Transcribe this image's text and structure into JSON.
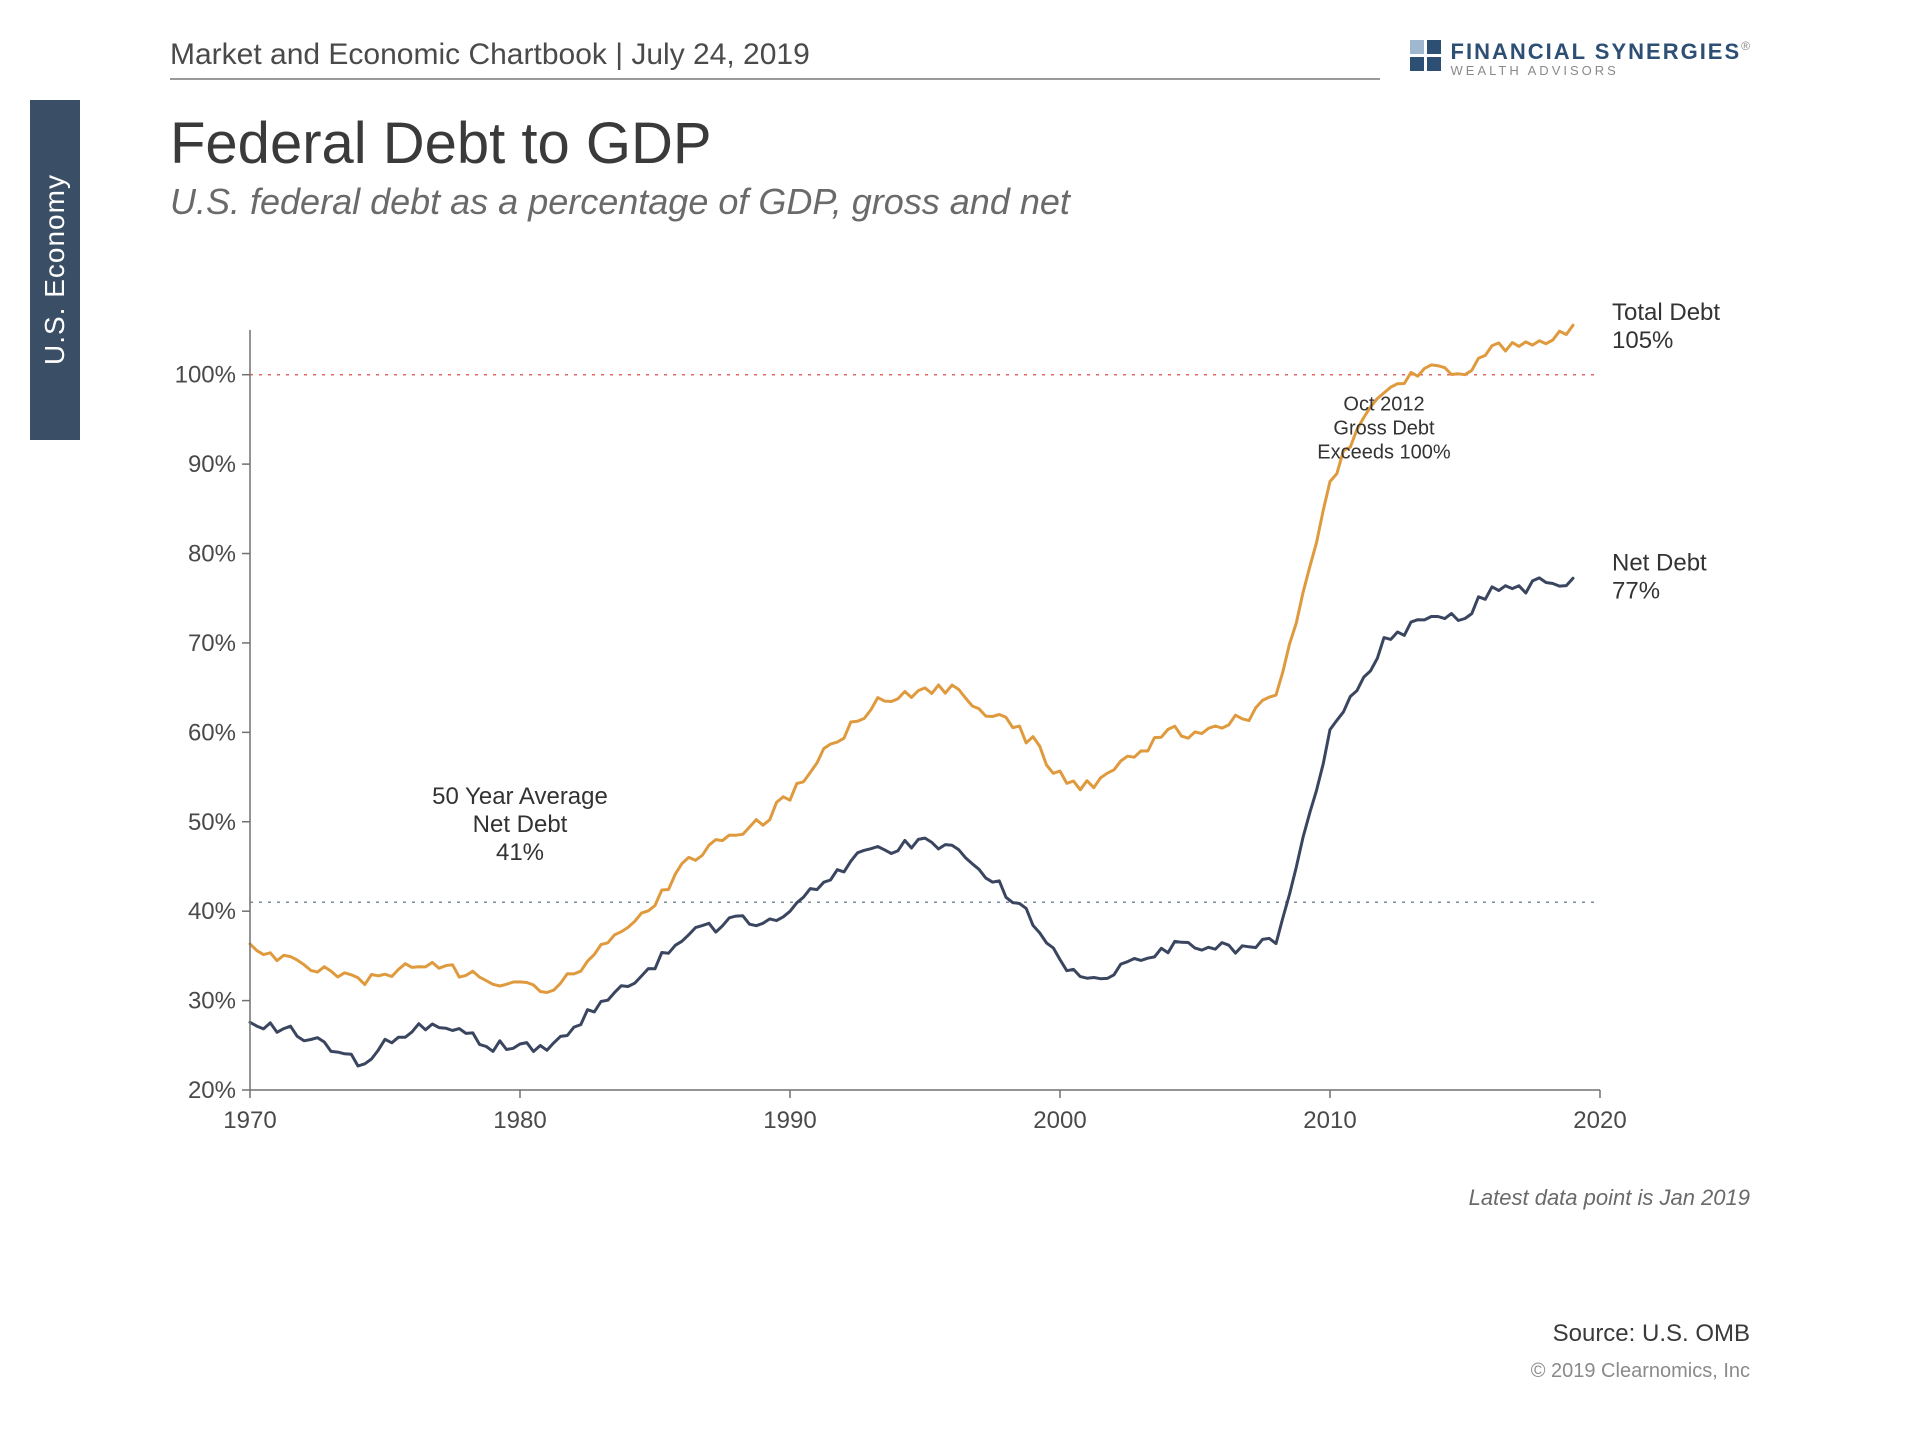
{
  "header": {
    "line": "Market and Economic Chartbook | July 24, 2019",
    "brand_line1": "FINANCIAL SYNERGIES",
    "brand_line2": "WEALTH ADVISORS"
  },
  "side_tab": "U.S. Economy",
  "title": "Federal Debt to GDP",
  "subtitle": "U.S. federal debt as a percentage of GDP, gross and net",
  "chart": {
    "type": "line",
    "x_start": 1970,
    "x_end": 2020,
    "x_ticks": [
      1970,
      1980,
      1990,
      2000,
      2010,
      2020
    ],
    "y_min": 20,
    "y_max": 105,
    "y_ticks": [
      20,
      30,
      40,
      50,
      60,
      70,
      80,
      90,
      100
    ],
    "y_tick_suffix": "%",
    "ref_100_color": "#e06666",
    "ref_100_value": 100,
    "avg_line_value": 41,
    "avg_line_color": "#7a8aa0",
    "axis_color": "#707070",
    "tick_font_size": 24,
    "line_width": 3,
    "series": {
      "total_debt": {
        "label_title": "Total Debt",
        "label_value": "105%",
        "color": "#e09a3e",
        "x": [
          1970,
          1971,
          1972,
          1973,
          1974,
          1975,
          1976,
          1977,
          1978,
          1979,
          1980,
          1981,
          1982,
          1983,
          1984,
          1985,
          1986,
          1987,
          1988,
          1989,
          1990,
          1991,
          1992,
          1993,
          1994,
          1995,
          1996,
          1997,
          1998,
          1999,
          2000,
          2001,
          2002,
          2003,
          2004,
          2005,
          2006,
          2007,
          2008,
          2009,
          2010,
          2011,
          2012,
          2013,
          2014,
          2015,
          2016,
          2017,
          2018,
          2019
        ],
        "y": [
          36,
          35,
          34,
          33,
          32,
          33,
          34,
          34,
          33,
          32,
          32,
          31,
          33,
          36,
          38,
          41,
          45,
          47,
          49,
          50,
          53,
          57,
          60,
          63,
          64,
          65,
          65,
          63,
          61,
          59,
          55,
          54,
          56,
          58,
          60,
          60,
          61,
          62,
          64,
          75,
          88,
          94,
          98,
          100,
          101,
          100,
          103,
          103,
          104,
          105
        ]
      },
      "net_debt": {
        "label_title": "Net Debt",
        "label_value": "77%",
        "color": "#3a4560",
        "x": [
          1970,
          1971,
          1972,
          1973,
          1974,
          1975,
          1976,
          1977,
          1978,
          1979,
          1980,
          1981,
          1982,
          1983,
          1984,
          1985,
          1986,
          1987,
          1988,
          1989,
          1990,
          1991,
          1992,
          1993,
          1994,
          1995,
          1996,
          1997,
          1998,
          1999,
          2000,
          2001,
          2002,
          2003,
          2004,
          2005,
          2006,
          2007,
          2008,
          2009,
          2010,
          2011,
          2012,
          2013,
          2014,
          2015,
          2016,
          2017,
          2018,
          2019
        ],
        "y": [
          27,
          27,
          26,
          25,
          23,
          25,
          27,
          27,
          26,
          25,
          25,
          25,
          27,
          30,
          32,
          34,
          37,
          38,
          39,
          39,
          40,
          43,
          45,
          47,
          47,
          48,
          47,
          45,
          42,
          39,
          34,
          32,
          33,
          35,
          36,
          36,
          36,
          36,
          37,
          48,
          60,
          65,
          70,
          72,
          73,
          73,
          76,
          76,
          77,
          77
        ]
      }
    },
    "annotations": {
      "avg_label_l1": "50 Year Average",
      "avg_label_l2": "Net Debt",
      "avg_label_l3": "41%",
      "cross_l1": "Oct 2012",
      "cross_l2": "Gross Debt",
      "cross_l3": "Exceeds 100%"
    }
  },
  "footer": {
    "latest": "Latest data point is Jan 2019",
    "source": "Source: U.S. OMB",
    "copyright": "© 2019 Clearnomics, Inc"
  }
}
